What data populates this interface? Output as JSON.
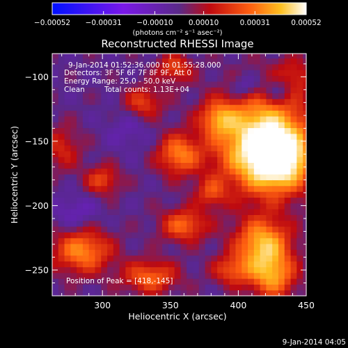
{
  "colorbar": {
    "tick_labels": [
      "-0.00052",
      "-0.00031",
      "-0.00010",
      "0.00010",
      "0.00031",
      "0.00052"
    ],
    "units_label": "(photons cm⁻² s⁻¹ asec⁻²)",
    "range": [
      -0.00052,
      0.00052
    ]
  },
  "title": "Reconstructed RHESSI Image",
  "info_lines": [
    "9-Jan-2014 01:52:36.000 to 01:55:28.000",
    "Detectors: 3F 5F 6F 7F 8F 9F, Att 0",
    "Energy Range: 25.0 - 50.0 keV"
  ],
  "clean_label": "Clean",
  "total_counts_label": "Total counts: 1.13E+04",
  "peak_label": "Position of Peak = [418,-145]",
  "footer_date": "9-Jan-2014 04:05",
  "chart_data": {
    "type": "heatmap",
    "title": "Reconstructed RHESSI Image",
    "xlabel": "Heliocentric X (arcsec)",
    "ylabel": "Heliocentric Y (arcsec)",
    "xlim": [
      263,
      450
    ],
    "ylim": [
      -270,
      -82
    ],
    "x_ticks": [
      300,
      350,
      400,
      450
    ],
    "y_ticks": [
      -100,
      -150,
      -200,
      -250
    ],
    "peak": [
      418,
      -145
    ],
    "sources": [
      {
        "x": 418,
        "y": -150,
        "sx": 24,
        "sy": 26,
        "amp": 1.0
      },
      {
        "x": 430,
        "y": -165,
        "sx": 15,
        "sy": 15,
        "amp": 0.7
      },
      {
        "x": 356,
        "y": -160,
        "sx": 11,
        "sy": 11,
        "amp": 0.55
      },
      {
        "x": 385,
        "y": -132,
        "sx": 9,
        "sy": 9,
        "amp": 0.45
      },
      {
        "x": 285,
        "y": -235,
        "sx": 15,
        "sy": 12,
        "amp": 0.6
      },
      {
        "x": 300,
        "y": -180,
        "sx": 9,
        "sy": 8,
        "amp": 0.4
      },
      {
        "x": 418,
        "y": -230,
        "sx": 14,
        "sy": 14,
        "amp": 0.75
      },
      {
        "x": 425,
        "y": -255,
        "sx": 12,
        "sy": 12,
        "amp": 0.6
      },
      {
        "x": 360,
        "y": -215,
        "sx": 12,
        "sy": 9,
        "amp": 0.5
      },
      {
        "x": 335,
        "y": -255,
        "sx": 14,
        "sy": 9,
        "amp": 0.5
      },
      {
        "x": 330,
        "y": -120,
        "sx": 10,
        "sy": 9,
        "amp": 0.4
      },
      {
        "x": 353,
        "y": -93,
        "sx": 9,
        "sy": 8,
        "amp": 0.4
      },
      {
        "x": 270,
        "y": -155,
        "sx": 10,
        "sy": 12,
        "amp": 0.3
      },
      {
        "x": 440,
        "y": -100,
        "sx": 10,
        "sy": 10,
        "amp": 0.3
      },
      {
        "x": 395,
        "y": -250,
        "sx": 10,
        "sy": 8,
        "amp": 0.4
      },
      {
        "x": 380,
        "y": -190,
        "sx": 8,
        "sy": 8,
        "amp": 0.35
      },
      {
        "x": 405,
        "y": -108,
        "sx": 8,
        "sy": 7,
        "amp": -0.3
      },
      {
        "x": 430,
        "y": -110,
        "sx": 8,
        "sy": 8,
        "amp": -0.35
      },
      {
        "x": 280,
        "y": -205,
        "sx": 12,
        "sy": 10,
        "amp": -0.2
      },
      {
        "x": 320,
        "y": -140,
        "sx": 12,
        "sy": 12,
        "amp": -0.15
      }
    ]
  }
}
